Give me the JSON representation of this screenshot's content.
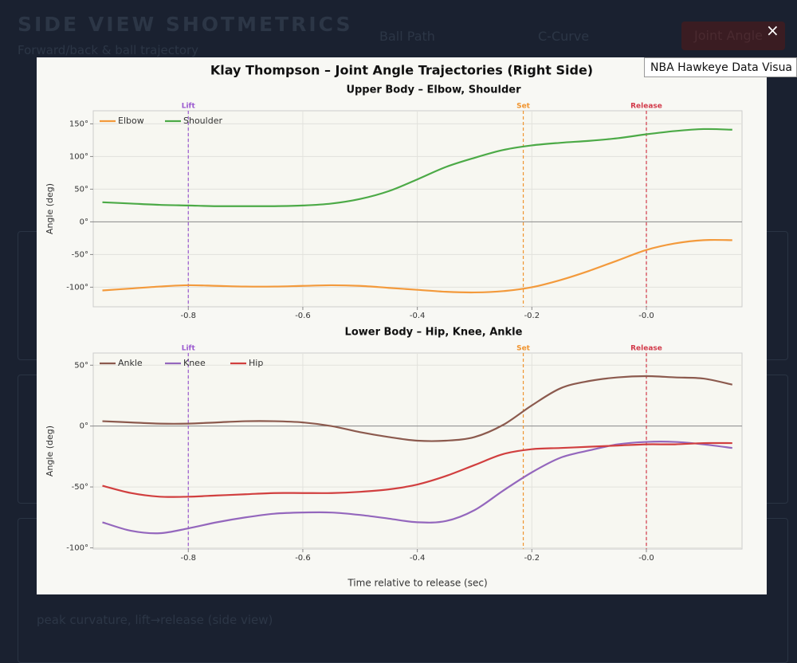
{
  "background": {
    "heading": "SIDE VIEW SHOTMETRICS",
    "subheading": "Forward/back & ball trajectory",
    "tabs": [
      "Ball Path",
      "C-Curve",
      "Joint Angle"
    ],
    "caption": "peak curvature, lift→release (side view)"
  },
  "tooltip": "NBA Hawkeye Data Visua",
  "close": "×",
  "modal": {
    "title": "Klay Thompson – Joint Angle Trajectories (Right Side)"
  },
  "chart_data": [
    {
      "type": "line",
      "title": "Upper Body – Elbow, Shoulder",
      "ylabel": "Angle (deg)",
      "legend": "upper left",
      "grid": true,
      "x": [
        -0.95,
        -0.9,
        -0.85,
        -0.8,
        -0.75,
        -0.7,
        -0.65,
        -0.6,
        -0.55,
        -0.5,
        -0.45,
        -0.4,
        -0.35,
        -0.3,
        -0.25,
        -0.2,
        -0.15,
        -0.1,
        -0.05,
        0,
        0.05,
        0.1,
        0.15
      ],
      "xlim": [
        -0.966,
        0.167
      ],
      "xticks": [
        -0.8,
        -0.6,
        -0.4,
        -0.2,
        {
          "value": 0,
          "label": "-0.0"
        }
      ],
      "ylim": [
        -130,
        170
      ],
      "yticks": [
        {
          "value": -100,
          "label": "-100°"
        },
        {
          "value": -50,
          "label": "-50°"
        },
        {
          "value": 0,
          "label": "0°"
        },
        {
          "value": 50,
          "label": "50°"
        },
        {
          "value": 100,
          "label": "100°"
        },
        {
          "value": 150,
          "label": "150°"
        }
      ],
      "events": [
        {
          "label": "Lift",
          "x": -0.8,
          "color": "#9b59d0"
        },
        {
          "label": "Set",
          "x": -0.215,
          "color": "#f0942f"
        },
        {
          "label": "Release",
          "x": 0,
          "color": "#d23a4a"
        }
      ],
      "series": [
        {
          "name": "Elbow",
          "color": "#f39a3c",
          "values": [
            -105,
            -102,
            -99,
            -97,
            -98,
            -99,
            -99,
            -98,
            -97,
            -98,
            -101,
            -104,
            -107,
            -108,
            -106,
            -100,
            -89,
            -75,
            -59,
            -43,
            -33,
            -28,
            -28
          ]
        },
        {
          "name": "Shoulder",
          "color": "#4caa47",
          "values": [
            30,
            28,
            26,
            25,
            24,
            24,
            24,
            25,
            28,
            35,
            47,
            65,
            84,
            98,
            110,
            117,
            121,
            124,
            128,
            134,
            139,
            142,
            141
          ]
        }
      ]
    },
    {
      "type": "line",
      "title": "Lower Body – Hip, Knee, Ankle",
      "ylabel": "Angle (deg)",
      "xlabel": "Time relative to release (sec)",
      "legend": "upper left",
      "grid": true,
      "x": [
        -0.95,
        -0.9,
        -0.85,
        -0.8,
        -0.75,
        -0.7,
        -0.65,
        -0.6,
        -0.55,
        -0.5,
        -0.45,
        -0.4,
        -0.35,
        -0.3,
        -0.25,
        -0.2,
        -0.15,
        -0.1,
        -0.05,
        0,
        0.05,
        0.1,
        0.15
      ],
      "xlim": [
        -0.966,
        0.167
      ],
      "xticks": [
        -0.8,
        -0.6,
        -0.4,
        -0.2,
        {
          "value": 0,
          "label": "-0.0"
        }
      ],
      "ylim": [
        -101,
        60
      ],
      "yticks": [
        {
          "value": -100,
          "label": "-100°"
        },
        {
          "value": -50,
          "label": "-50°"
        },
        {
          "value": 0,
          "label": "0°"
        },
        {
          "value": 50,
          "label": "50°"
        }
      ],
      "events": [
        {
          "label": "Lift",
          "x": -0.8,
          "color": "#9b59d0"
        },
        {
          "label": "Set",
          "x": -0.215,
          "color": "#f0942f"
        },
        {
          "label": "Release",
          "x": 0,
          "color": "#d23a4a"
        }
      ],
      "series": [
        {
          "name": "Ankle",
          "color": "#8c5a4e",
          "values": [
            4,
            3,
            2,
            2,
            3,
            4,
            4,
            3,
            0,
            -5,
            -9,
            -12,
            -12,
            -9,
            1,
            17,
            31,
            37,
            40,
            41,
            40,
            39,
            34
          ]
        },
        {
          "name": "Knee",
          "color": "#9467bd",
          "values": [
            -79,
            -86,
            -88,
            -84,
            -79,
            -75,
            -72,
            -71,
            -71,
            -73,
            -76,
            -79,
            -78,
            -69,
            -53,
            -38,
            -26,
            -20,
            -15,
            -13,
            -13,
            -15,
            -18
          ]
        },
        {
          "name": "Hip",
          "color": "#d13f3f",
          "values": [
            -49,
            -55,
            -58,
            -58,
            -57,
            -56,
            -55,
            -55,
            -55,
            -54,
            -52,
            -48,
            -41,
            -32,
            -23,
            -19,
            -18,
            -17,
            -16,
            -15,
            -15,
            -14,
            -14
          ]
        }
      ]
    }
  ]
}
